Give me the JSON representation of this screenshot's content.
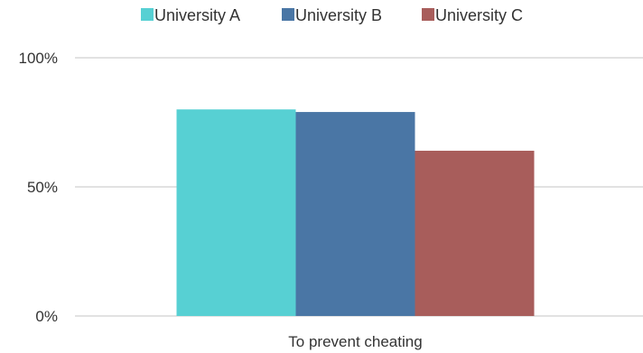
{
  "chart_data": {
    "type": "bar",
    "categories": [
      "To prevent cheating"
    ],
    "series": [
      {
        "name": "University A",
        "values": [
          80
        ],
        "color": "#57d0d3"
      },
      {
        "name": "University B",
        "values": [
          79
        ],
        "color": "#4a76a5"
      },
      {
        "name": "University C",
        "values": [
          64
        ],
        "color": "#a85d5b"
      }
    ],
    "yticks": [
      {
        "value": 0,
        "label": "0%"
      },
      {
        "value": 50,
        "label": "50%"
      },
      {
        "value": 100,
        "label": "100%"
      }
    ],
    "ylim": [
      0,
      100
    ],
    "grid": true,
    "legend_position": "top"
  }
}
